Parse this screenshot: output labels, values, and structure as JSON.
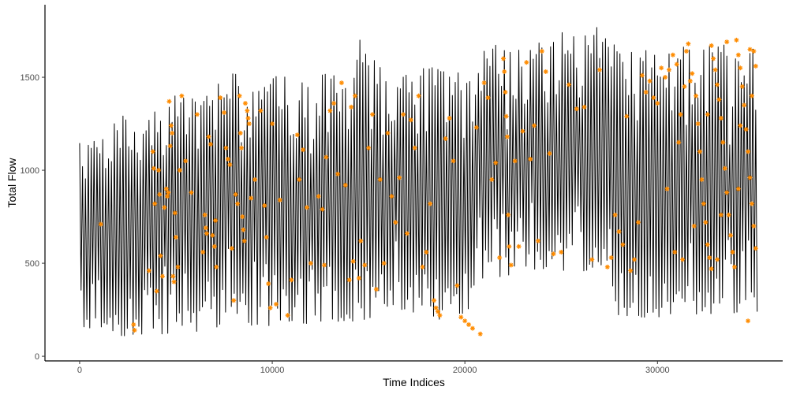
{
  "chart_data": {
    "type": "line",
    "title": "",
    "xlabel": "Time Indices",
    "ylabel": "Total Flow",
    "xlim": [
      -1800,
      36500
    ],
    "ylim": [
      -25,
      1890
    ],
    "xticks": [
      0,
      10000,
      20000,
      30000
    ],
    "xtick_labels": [
      "0",
      "10000",
      "20000",
      "30000"
    ],
    "yticks": [
      0,
      500,
      1000,
      1500
    ],
    "ytick_labels": [
      "0",
      "500",
      "1000",
      "1500"
    ],
    "grid": false,
    "legend": "none",
    "series": [
      {
        "role": "line",
        "color": "#000000",
        "note_x_range": [
          0,
          35200
        ],
        "envelope_x": [
          0,
          1000,
          2000,
          3000,
          4000,
          5000,
          6000,
          7000,
          8000,
          9000,
          10000,
          11000,
          12000,
          13000,
          14000,
          14500,
          15000,
          16000,
          17000,
          18000,
          19000,
          20000,
          20900,
          21000,
          22000,
          23000,
          24000,
          25000,
          26000,
          27000,
          27500,
          28000,
          29000,
          30000,
          31000,
          32000,
          33000,
          34000,
          35200
        ],
        "envelope_high": [
          1260,
          1180,
          1330,
          1340,
          1350,
          1480,
          1400,
          1490,
          1560,
          1580,
          1530,
          1560,
          1520,
          1570,
          1460,
          1740,
          1680,
          1530,
          1540,
          1590,
          1560,
          1560,
          1550,
          1700,
          1730,
          1700,
          1740,
          1780,
          1730,
          1810,
          1760,
          1680,
          1670,
          1680,
          1700,
          1690,
          1700,
          1710,
          1700
        ],
        "envelope_low": [
          70,
          80,
          80,
          90,
          90,
          100,
          100,
          110,
          120,
          130,
          130,
          140,
          150,
          150,
          160,
          160,
          170,
          170,
          170,
          170,
          160,
          150,
          380,
          400,
          400,
          420,
          420,
          430,
          430,
          420,
          400,
          180,
          180,
          180,
          190,
          190,
          180,
          180,
          180
        ]
      },
      {
        "role": "points",
        "marker": "asterisk",
        "color": "#FF8C00",
        "points": [
          [
            1100,
            710
          ],
          [
            2800,
            170
          ],
          [
            2850,
            140
          ],
          [
            3600,
            460
          ],
          [
            3800,
            1100
          ],
          [
            3850,
            1010
          ],
          [
            3900,
            820
          ],
          [
            4000,
            350
          ],
          [
            4100,
            1000
          ],
          [
            4150,
            870
          ],
          [
            4200,
            540
          ],
          [
            4300,
            430
          ],
          [
            4400,
            800
          ],
          [
            4500,
            900
          ],
          [
            4550,
            860
          ],
          [
            4600,
            880
          ],
          [
            4650,
            1370
          ],
          [
            4700,
            1130
          ],
          [
            4750,
            1240
          ],
          [
            4800,
            1200
          ],
          [
            4850,
            430
          ],
          [
            4900,
            400
          ],
          [
            4950,
            770
          ],
          [
            5000,
            640
          ],
          [
            5100,
            480
          ],
          [
            5200,
            1000
          ],
          [
            5300,
            1400
          ],
          [
            5500,
            1050
          ],
          [
            5800,
            880
          ],
          [
            6100,
            1300
          ],
          [
            6400,
            560
          ],
          [
            6500,
            760
          ],
          [
            6550,
            690
          ],
          [
            6600,
            660
          ],
          [
            6700,
            1180
          ],
          [
            6800,
            1140
          ],
          [
            6900,
            650
          ],
          [
            7000,
            590
          ],
          [
            7050,
            730
          ],
          [
            7100,
            480
          ],
          [
            7300,
            1390
          ],
          [
            7500,
            1310
          ],
          [
            7600,
            1120
          ],
          [
            7700,
            1060
          ],
          [
            7800,
            1030
          ],
          [
            7900,
            580
          ],
          [
            8000,
            300
          ],
          [
            8100,
            870
          ],
          [
            8200,
            820
          ],
          [
            8300,
            1400
          ],
          [
            8350,
            1200
          ],
          [
            8400,
            1120
          ],
          [
            8450,
            750
          ],
          [
            8500,
            680
          ],
          [
            8550,
            620
          ],
          [
            8600,
            1360
          ],
          [
            8700,
            1320
          ],
          [
            8750,
            1280
          ],
          [
            8800,
            1250
          ],
          [
            8900,
            850
          ],
          [
            9100,
            950
          ],
          [
            9400,
            1320
          ],
          [
            9600,
            810
          ],
          [
            9700,
            640
          ],
          [
            9800,
            390
          ],
          [
            9900,
            260
          ],
          [
            10000,
            1250
          ],
          [
            10200,
            280
          ],
          [
            10400,
            840
          ],
          [
            10800,
            220
          ],
          [
            11000,
            410
          ],
          [
            11300,
            1190
          ],
          [
            11400,
            950
          ],
          [
            11600,
            1110
          ],
          [
            11800,
            800
          ],
          [
            12000,
            500
          ],
          [
            12400,
            860
          ],
          [
            12600,
            790
          ],
          [
            12700,
            490
          ],
          [
            12800,
            1070
          ],
          [
            13000,
            1320
          ],
          [
            13200,
            1360
          ],
          [
            13400,
            980
          ],
          [
            13600,
            1470
          ],
          [
            13800,
            920
          ],
          [
            14000,
            410
          ],
          [
            14100,
            1340
          ],
          [
            14200,
            510
          ],
          [
            14300,
            1400
          ],
          [
            14500,
            420
          ],
          [
            14600,
            620
          ],
          [
            14800,
            490
          ],
          [
            15000,
            1120
          ],
          [
            15200,
            1300
          ],
          [
            15400,
            360
          ],
          [
            15600,
            950
          ],
          [
            15800,
            500
          ],
          [
            16000,
            1200
          ],
          [
            16200,
            860
          ],
          [
            16400,
            720
          ],
          [
            16600,
            960
          ],
          [
            16800,
            1300
          ],
          [
            17000,
            660
          ],
          [
            17200,
            1270
          ],
          [
            17400,
            1120
          ],
          [
            17600,
            1400
          ],
          [
            17800,
            480
          ],
          [
            18000,
            560
          ],
          [
            18200,
            820
          ],
          [
            18400,
            300
          ],
          [
            18500,
            260
          ],
          [
            18600,
            240
          ],
          [
            18700,
            220
          ],
          [
            19000,
            1170
          ],
          [
            19200,
            1280
          ],
          [
            19400,
            1050
          ],
          [
            19600,
            380
          ],
          [
            19800,
            210
          ],
          [
            20000,
            190
          ],
          [
            20200,
            170
          ],
          [
            20400,
            150
          ],
          [
            20600,
            1230
          ],
          [
            20800,
            120
          ],
          [
            21000,
            1470
          ],
          [
            21200,
            1390
          ],
          [
            21400,
            950
          ],
          [
            21600,
            1040
          ],
          [
            21800,
            530
          ],
          [
            22000,
            1600
          ],
          [
            22050,
            1530
          ],
          [
            22100,
            1420
          ],
          [
            22150,
            1290
          ],
          [
            22200,
            1180
          ],
          [
            22250,
            760
          ],
          [
            22300,
            590
          ],
          [
            22400,
            490
          ],
          [
            22600,
            1050
          ],
          [
            22800,
            590
          ],
          [
            23000,
            1210
          ],
          [
            23200,
            1580
          ],
          [
            23400,
            1060
          ],
          [
            23600,
            1240
          ],
          [
            23800,
            620
          ],
          [
            24000,
            1640
          ],
          [
            24200,
            1530
          ],
          [
            24400,
            1090
          ],
          [
            24600,
            550
          ],
          [
            25000,
            560
          ],
          [
            25400,
            1460
          ],
          [
            25800,
            1330
          ],
          [
            26200,
            1340
          ],
          [
            26600,
            520
          ],
          [
            27000,
            1540
          ],
          [
            27400,
            480
          ],
          [
            27600,
            530
          ],
          [
            27800,
            760
          ],
          [
            28000,
            670
          ],
          [
            28200,
            600
          ],
          [
            28400,
            1290
          ],
          [
            28600,
            460
          ],
          [
            28800,
            520
          ],
          [
            29000,
            720
          ],
          [
            29200,
            1510
          ],
          [
            29400,
            1420
          ],
          [
            29600,
            1480
          ],
          [
            29800,
            1390
          ],
          [
            30000,
            1360
          ],
          [
            30200,
            1550
          ],
          [
            30400,
            1500
          ],
          [
            30600,
            1540
          ],
          [
            30800,
            1620
          ],
          [
            31000,
            1570
          ],
          [
            31200,
            1300
          ],
          [
            31400,
            1450
          ],
          [
            31600,
            1680
          ],
          [
            31700,
            1480
          ],
          [
            31800,
            1520
          ],
          [
            32000,
            1400
          ],
          [
            32100,
            1250
          ],
          [
            32200,
            1100
          ],
          [
            32300,
            950
          ],
          [
            32400,
            820
          ],
          [
            32500,
            720
          ],
          [
            32600,
            600
          ],
          [
            32700,
            530
          ],
          [
            32800,
            470
          ],
          [
            32900,
            1600
          ],
          [
            33000,
            1540
          ],
          [
            33100,
            1460
          ],
          [
            33200,
            1380
          ],
          [
            33300,
            1280
          ],
          [
            33400,
            1150
          ],
          [
            33500,
            1010
          ],
          [
            33600,
            880
          ],
          [
            33700,
            760
          ],
          [
            33800,
            650
          ],
          [
            33900,
            560
          ],
          [
            34000,
            480
          ],
          [
            34100,
            1700
          ],
          [
            34200,
            1620
          ],
          [
            34300,
            1550
          ],
          [
            34400,
            1450
          ],
          [
            34500,
            1350
          ],
          [
            34600,
            1220
          ],
          [
            34700,
            1100
          ],
          [
            34800,
            960
          ],
          [
            34900,
            820
          ],
          [
            35000,
            700
          ],
          [
            35100,
            580
          ],
          [
            31500,
            1640
          ],
          [
            32800,
            1670
          ],
          [
            33600,
            1690
          ],
          [
            34800,
            1650
          ],
          [
            30500,
            900
          ],
          [
            31100,
            1150
          ],
          [
            31900,
            700
          ],
          [
            32600,
            1300
          ],
          [
            33300,
            760
          ],
          [
            34200,
            900
          ],
          [
            34700,
            190
          ],
          [
            30900,
            560
          ],
          [
            31300,
            520
          ],
          [
            33100,
            520
          ],
          [
            34300,
            1240
          ],
          [
            34900,
            1400
          ],
          [
            35000,
            1640
          ],
          [
            35100,
            1560
          ]
        ]
      }
    ]
  }
}
